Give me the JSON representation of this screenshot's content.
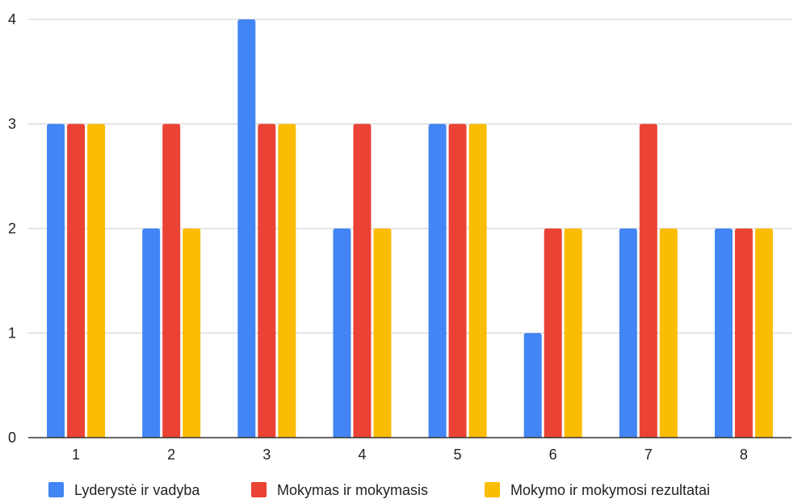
{
  "chart_data": {
    "type": "bar",
    "categories": [
      "1",
      "2",
      "3",
      "4",
      "5",
      "6",
      "7",
      "8"
    ],
    "series": [
      {
        "name": "Lyderystė ir vadyba",
        "color": "#4285f4",
        "values": [
          3,
          2,
          4,
          2,
          3,
          1,
          2,
          2
        ]
      },
      {
        "name": "Mokymas ir mokymasis",
        "color": "#ea4335",
        "values": [
          3,
          3,
          3,
          3,
          3,
          2,
          3,
          2
        ]
      },
      {
        "name": "Mokymo ir mokymosi rezultatai",
        "color": "#fbbc04",
        "values": [
          3,
          2,
          3,
          2,
          3,
          2,
          2,
          2
        ]
      }
    ],
    "yticks": [
      "0",
      "1",
      "2",
      "3",
      "4"
    ],
    "ylim": [
      0,
      4
    ],
    "title": "",
    "xlabel": "",
    "ylabel": "",
    "grid": true,
    "legend_position": "bottom"
  }
}
